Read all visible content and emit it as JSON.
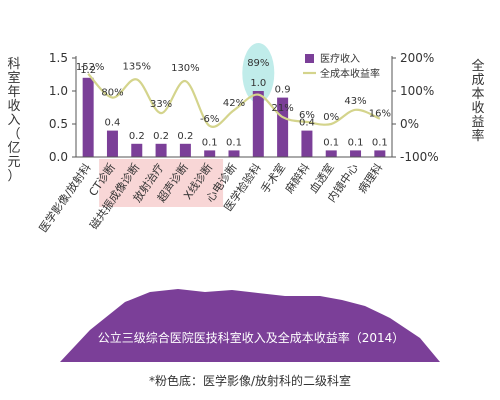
{
  "colors": {
    "bar": "#7b3f98",
    "line": "#d4d48c",
    "axis": "#555555",
    "pink_highlight": "#f6c8c8",
    "teal_highlight": "#9ee2df",
    "banner": "#7b3f98",
    "banner_text": "#ffffff"
  },
  "banner_title": "公立三级综合医院医技科室收入及全成本收益率（2014）",
  "footnote": "*粉色底：医学影像/放射科的二级科室",
  "chart_data": {
    "type": "bar",
    "categories": [
      "医学影像/放射科",
      "CT诊断",
      "磁共振成像诊断",
      "放射治疗",
      "超声诊断",
      "X线诊断",
      "心电诊断",
      "医学检验科",
      "手术室",
      "麻醉科",
      "血透室",
      "内镜中心",
      "病理科"
    ],
    "pink_background_categories": [
      "CT诊断",
      "磁共振成像诊断",
      "放射治疗",
      "超声诊断",
      "X线诊断"
    ],
    "teal_highlight_category": "医学检验科",
    "series": [
      {
        "name": "医疗收入",
        "type": "bar",
        "axis": "left",
        "values": [
          1.2,
          0.4,
          0.2,
          0.2,
          0.2,
          0.1,
          0.1,
          1.0,
          0.9,
          0.4,
          0.1,
          0.1,
          0.1
        ],
        "labels": [
          "1.2",
          "0.4",
          "0.2",
          "0.2",
          "0.2",
          "0.1",
          "0.1",
          "1.0",
          "0.9",
          "0.4",
          "0.1",
          "0.1",
          "0.1"
        ]
      },
      {
        "name": "全成本收益率",
        "type": "line",
        "axis": "right",
        "values": [
          152,
          80,
          135,
          33,
          130,
          -6,
          42,
          89,
          21,
          6,
          0,
          43,
          16
        ],
        "labels": [
          "152%",
          "80%",
          "135%",
          "33%",
          "130%",
          "-6%",
          "42%",
          "89%",
          "21%",
          "6%",
          "0%",
          "43%",
          "16%"
        ]
      }
    ],
    "y_left": {
      "label": "科室年收入（亿元）",
      "lim": [
        0,
        1.5
      ],
      "ticks": [
        "0.0",
        "0.5",
        "1.0",
        "1.5"
      ]
    },
    "y_right": {
      "label": "全成本收益率",
      "lim": [
        -100,
        200
      ],
      "ticks": [
        "-100%",
        "0%",
        "100%",
        "200%"
      ]
    },
    "legend_position": "top-right",
    "grid": false
  }
}
